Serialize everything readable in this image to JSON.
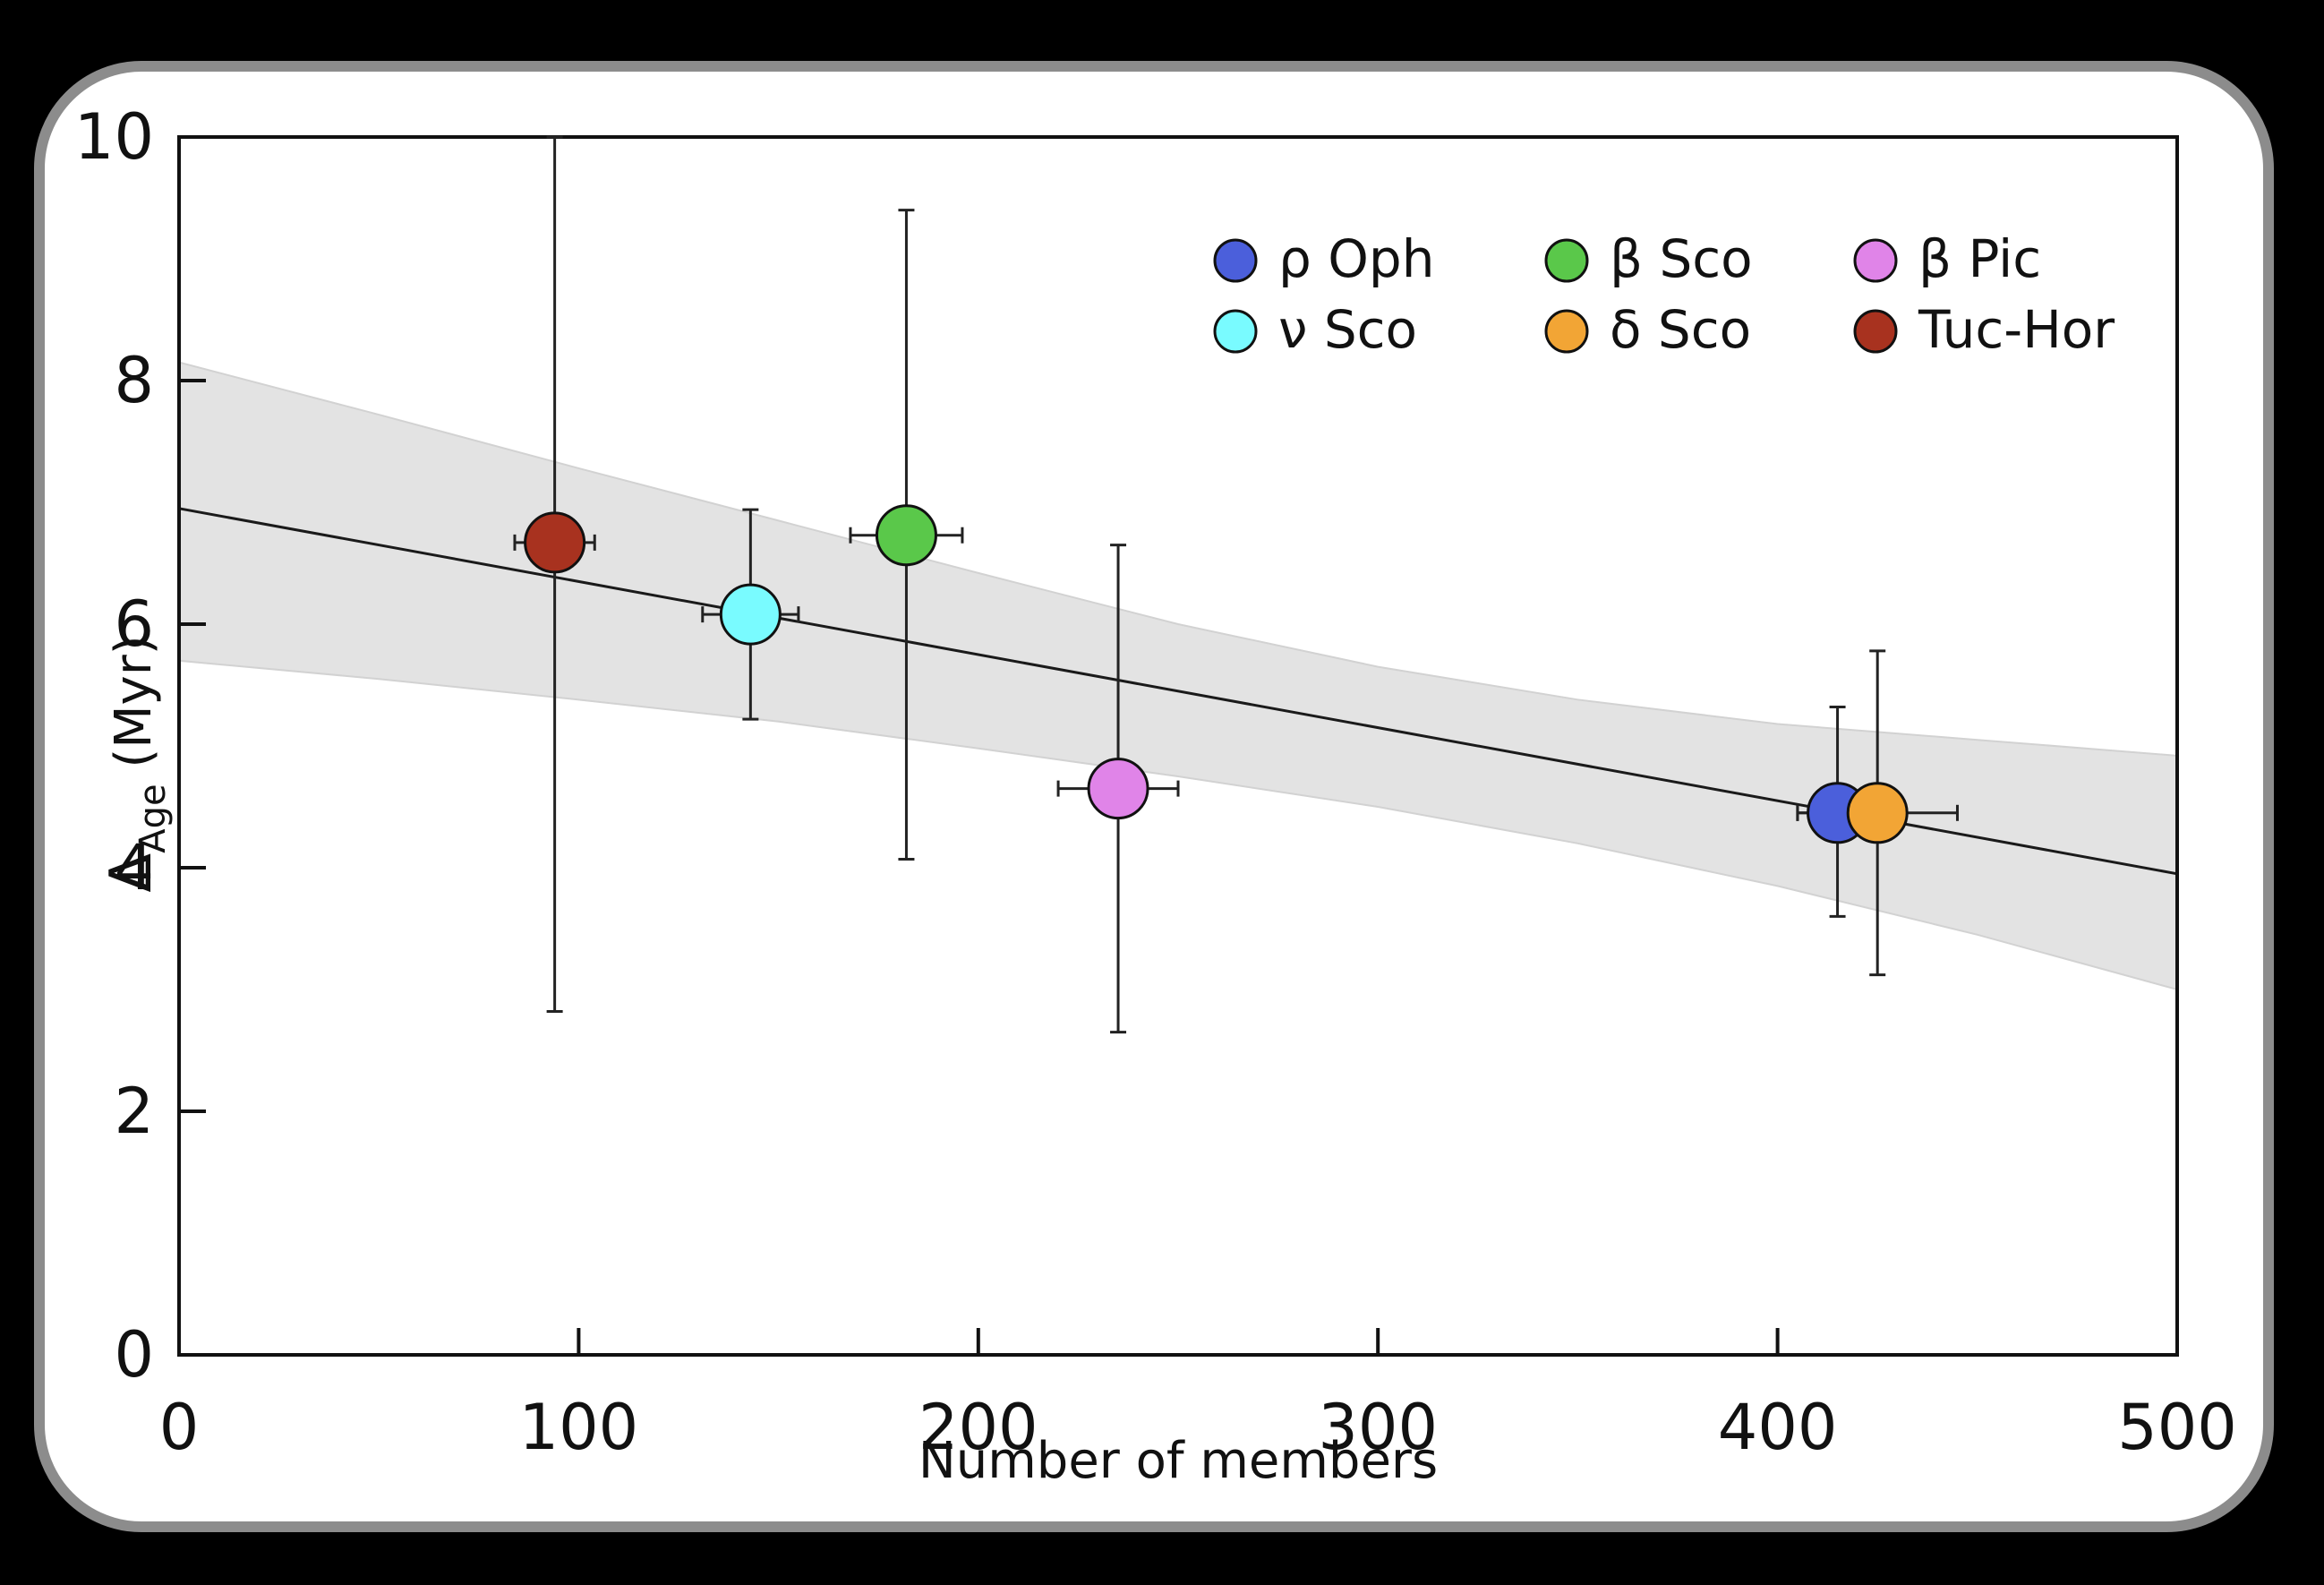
{
  "chart_data": {
    "type": "scatter",
    "xlabel": "Number of members",
    "ylabel_main": "Δ",
    "ylabel_sub": "Age",
    "ylabel_unit": " (Myr)",
    "xlim": [
      0,
      500
    ],
    "ylim": [
      0,
      10
    ],
    "xticks": [
      0,
      100,
      200,
      300,
      400,
      500
    ],
    "yticks": [
      0,
      2,
      4,
      6,
      8,
      10
    ],
    "grid": false,
    "legend_position": "top-right",
    "series": [
      {
        "name": "ρ Oph",
        "color": "#4b5fdb",
        "x": 415,
        "y": 4.45,
        "xerr": 10,
        "yerr_low": 0.85,
        "yerr_high": 0.87
      },
      {
        "name": "ν Sco",
        "color": "#79fbff",
        "x": 143,
        "y": 6.08,
        "xerr": 12,
        "yerr_low": 0.86,
        "yerr_high": 0.86
      },
      {
        "name": "β Sco",
        "color": "#5ac84a",
        "x": 182,
        "y": 6.73,
        "xerr": 14,
        "yerr_low": 2.66,
        "yerr_high": 2.67
      },
      {
        "name": "δ Sco",
        "color": "#f2a535",
        "x": 425,
        "y": 4.45,
        "xerr": 20,
        "yerr_low": 1.33,
        "yerr_high": 1.33
      },
      {
        "name": "β Pic",
        "color": "#e084e8",
        "x": 235,
        "y": 4.65,
        "xerr": 15,
        "yerr_low": 2.0,
        "yerr_high": 2.0
      },
      {
        "name": "Tuc-Hor",
        "color": "#a8321f",
        "x": 94,
        "y": 6.67,
        "xerr": 10,
        "yerr_low": 3.85,
        "yerr_high": 3.33
      }
    ],
    "fit": {
      "x": [
        0,
        500
      ],
      "y": [
        6.95,
        3.95
      ]
    },
    "confidence_band": {
      "x": [
        0,
        50,
        100,
        150,
        200,
        250,
        300,
        350,
        400,
        450,
        500
      ],
      "upper": [
        8.15,
        7.72,
        7.28,
        6.85,
        6.42,
        6.0,
        5.65,
        5.38,
        5.18,
        5.05,
        4.92
      ],
      "lower": [
        5.7,
        5.55,
        5.38,
        5.2,
        4.98,
        4.75,
        4.5,
        4.2,
        3.85,
        3.45,
        3.0
      ]
    }
  }
}
